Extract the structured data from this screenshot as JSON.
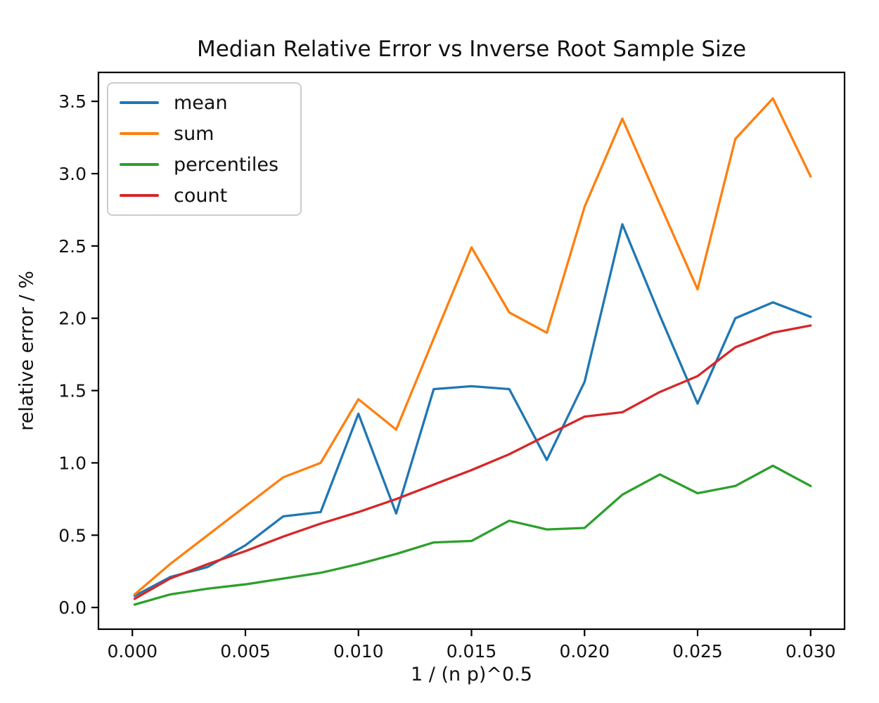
{
  "chart_data": {
    "type": "line",
    "title": "Median Relative Error vs Inverse Root Sample Size",
    "xlabel": "1 / (n p)^0.5",
    "ylabel": "relative error / %",
    "grid": false,
    "legend_position": "upper left",
    "xlim": [
      -0.0015,
      0.0315
    ],
    "ylim": [
      -0.15,
      3.7
    ],
    "x_ticks": {
      "values": [
        0.0,
        0.005,
        0.01,
        0.015,
        0.02,
        0.025,
        0.03
      ],
      "labels": [
        "0.000",
        "0.005",
        "0.010",
        "0.015",
        "0.020",
        "0.025",
        "0.030"
      ]
    },
    "y_ticks": {
      "values": [
        0.0,
        0.5,
        1.0,
        1.5,
        2.0,
        2.5,
        3.0,
        3.5
      ],
      "labels": [
        "0.0",
        "0.5",
        "1.0",
        "1.5",
        "2.0",
        "2.5",
        "3.0",
        "3.5"
      ]
    },
    "x": [
      0.0001,
      0.00167,
      0.00333,
      0.005,
      0.00667,
      0.00833,
      0.01,
      0.01167,
      0.01333,
      0.015,
      0.01667,
      0.01833,
      0.02,
      0.02167,
      0.02333,
      0.025,
      0.02667,
      0.02833,
      0.03
    ],
    "series": [
      {
        "name": "mean",
        "color": "#1f77b4",
        "values": [
          0.08,
          0.21,
          0.28,
          0.43,
          0.63,
          0.66,
          1.34,
          0.65,
          1.51,
          1.53,
          1.51,
          1.02,
          1.56,
          2.65,
          2.02,
          1.41,
          2.0,
          2.11,
          2.01
        ]
      },
      {
        "name": "sum",
        "color": "#ff7f0e",
        "values": [
          0.09,
          0.3,
          0.5,
          0.7,
          0.9,
          1.0,
          1.44,
          1.23,
          1.86,
          2.49,
          2.04,
          1.9,
          2.77,
          3.38,
          2.79,
          2.2,
          3.24,
          3.52,
          2.98
        ]
      },
      {
        "name": "percentiles",
        "color": "#2ca02c",
        "values": [
          0.02,
          0.09,
          0.13,
          0.16,
          0.2,
          0.24,
          0.3,
          0.37,
          0.45,
          0.46,
          0.6,
          0.54,
          0.55,
          0.78,
          0.92,
          0.79,
          0.84,
          0.98,
          0.84
        ]
      },
      {
        "name": "count",
        "color": "#d62728",
        "values": [
          0.06,
          0.2,
          0.3,
          0.39,
          0.49,
          0.58,
          0.66,
          0.75,
          0.85,
          0.95,
          1.06,
          1.19,
          1.32,
          1.35,
          1.49,
          1.6,
          1.8,
          1.9,
          1.95
        ]
      }
    ]
  }
}
